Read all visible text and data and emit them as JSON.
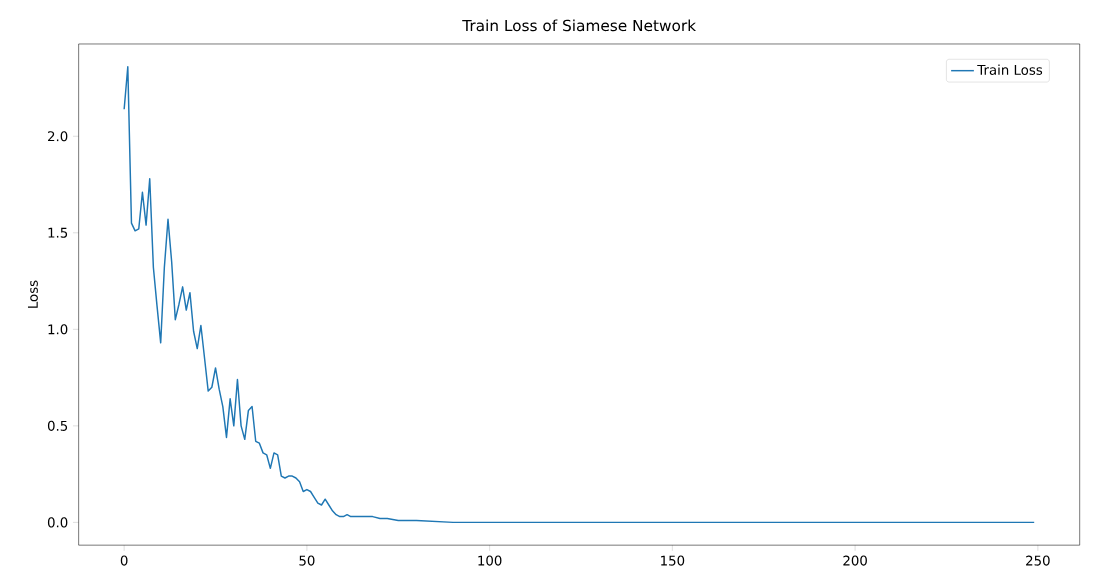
{
  "chart_data": {
    "type": "line",
    "title": "Train Loss of Siamese Network",
    "ylabel": "Loss",
    "x": [
      0,
      1,
      2,
      3,
      4,
      5,
      6,
      7,
      8,
      9,
      10,
      11,
      12,
      13,
      14,
      15,
      16,
      17,
      18,
      19,
      20,
      21,
      22,
      23,
      24,
      25,
      26,
      27,
      28,
      29,
      30,
      31,
      32,
      33,
      34,
      35,
      36,
      37,
      38,
      39,
      40,
      41,
      42,
      43,
      44,
      45,
      46,
      47,
      48,
      49,
      50,
      51,
      52,
      53,
      54,
      55,
      56,
      57,
      58,
      59,
      60,
      61,
      62,
      63,
      65,
      68,
      70,
      72,
      75,
      80,
      90,
      100,
      150,
      200,
      249
    ],
    "series": [
      {
        "name": "Train Loss",
        "color": "#1f77b4",
        "values": [
          2.14,
          2.36,
          1.55,
          1.51,
          1.52,
          1.71,
          1.54,
          1.78,
          1.32,
          1.12,
          0.93,
          1.32,
          1.57,
          1.35,
          1.05,
          1.13,
          1.22,
          1.1,
          1.19,
          0.99,
          0.9,
          1.02,
          0.85,
          0.68,
          0.7,
          0.8,
          0.69,
          0.6,
          0.44,
          0.64,
          0.5,
          0.74,
          0.5,
          0.43,
          0.58,
          0.6,
          0.42,
          0.41,
          0.36,
          0.35,
          0.28,
          0.36,
          0.35,
          0.24,
          0.23,
          0.24,
          0.24,
          0.23,
          0.21,
          0.16,
          0.17,
          0.16,
          0.13,
          0.1,
          0.09,
          0.12,
          0.09,
          0.06,
          0.04,
          0.03,
          0.03,
          0.04,
          0.03,
          0.03,
          0.03,
          0.03,
          0.02,
          0.02,
          0.01,
          0.01,
          0.0,
          0.0,
          0.0,
          0.0,
          0.0
        ]
      }
    ],
    "xlim": [
      -12.45,
      261.45
    ],
    "ylim": [
      -0.118,
      2.478
    ],
    "xticks": [
      0,
      50,
      100,
      150,
      200,
      250
    ],
    "yticks": [
      {
        "value": 0,
        "label": "0.0"
      },
      {
        "value": 0.5,
        "label": "0.5"
      },
      {
        "value": 1,
        "label": "1.0"
      },
      {
        "value": 1.5,
        "label": "1.5"
      },
      {
        "value": 2,
        "label": "2.0"
      }
    ],
    "legend": "top right",
    "grid": false,
    "marker": "none",
    "line_style": "solid"
  }
}
